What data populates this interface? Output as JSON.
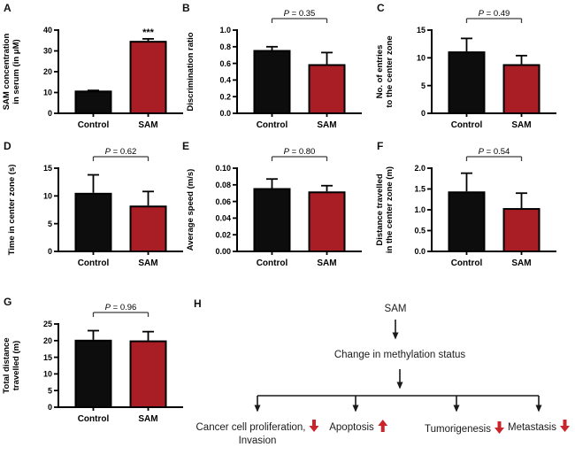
{
  "figure": {
    "background": "#ffffff",
    "categories": [
      "Control",
      "SAM"
    ],
    "bar_colors": [
      "#0d0d0d",
      "#a81e24"
    ],
    "axis_color": "#000000",
    "bracket_color": "#3d3d3d"
  },
  "chart_data": [
    {
      "type": "bar",
      "panel": "A",
      "categories": [
        "Control",
        "SAM"
      ],
      "values": [
        10.5,
        34.4
      ],
      "errors": [
        0.5,
        1.4
      ],
      "ylabel": "SAM concentration in serum (in μM)",
      "ylabel_lines": [
        "SAM concentration",
        "in serum (in μM)"
      ],
      "ylim": [
        0,
        40
      ],
      "yticks": [
        0,
        10,
        20,
        30,
        40
      ],
      "ytick_labels": [
        "0",
        "10",
        "20",
        "30",
        "40"
      ],
      "annotation": "***",
      "p_label": null
    },
    {
      "type": "bar",
      "panel": "B",
      "categories": [
        "Control",
        "SAM"
      ],
      "values": [
        0.75,
        0.58
      ],
      "errors": [
        0.05,
        0.15
      ],
      "ylabel": "Discrimination ratio",
      "ylabel_lines": [
        "Discrimination ratio"
      ],
      "ylim": [
        0,
        1.0
      ],
      "yticks": [
        0,
        0.2,
        0.4,
        0.6,
        0.8,
        1.0
      ],
      "ytick_labels": [
        "0.0",
        "0.2",
        "0.4",
        "0.6",
        "0.8",
        "1.0"
      ],
      "annotation": null,
      "p_label": {
        "italic": "P",
        "rest": " = 0.35"
      }
    },
    {
      "type": "bar",
      "panel": "C",
      "categories": [
        "Control",
        "SAM"
      ],
      "values": [
        11.0,
        8.7
      ],
      "errors": [
        2.5,
        1.7
      ],
      "ylabel": "No. of entries to the center zone",
      "ylabel_lines": [
        "No. of entries",
        "to the center zone"
      ],
      "ylim": [
        0,
        15
      ],
      "yticks": [
        0,
        5,
        10,
        15
      ],
      "ytick_labels": [
        "0",
        "5",
        "10",
        "15"
      ],
      "annotation": null,
      "p_label": {
        "italic": "P",
        "rest": " = 0.49"
      }
    },
    {
      "type": "bar",
      "panel": "D",
      "categories": [
        "Control",
        "SAM"
      ],
      "values": [
        10.4,
        8.1
      ],
      "errors": [
        3.4,
        2.7
      ],
      "ylabel": "Time in center zone (s)",
      "ylabel_lines": [
        "Time in center zone (s)"
      ],
      "ylim": [
        0,
        15
      ],
      "yticks": [
        0,
        5,
        10,
        15
      ],
      "ytick_labels": [
        "0",
        "5",
        "10",
        "15"
      ],
      "annotation": null,
      "p_label": {
        "italic": "P",
        "rest": " = 0.62"
      }
    },
    {
      "type": "bar",
      "panel": "E",
      "categories": [
        "Control",
        "SAM"
      ],
      "values": [
        0.075,
        0.071
      ],
      "errors": [
        0.012,
        0.008
      ],
      "ylabel": "Average speed (m/s)",
      "ylabel_lines": [
        "Average speed (m/s)"
      ],
      "ylim": [
        0,
        0.1
      ],
      "yticks": [
        0,
        0.02,
        0.04,
        0.06,
        0.08,
        0.1
      ],
      "ytick_labels": [
        "0.00",
        "0.02",
        "0.04",
        "0.06",
        "0.08",
        "0.10"
      ],
      "annotation": null,
      "p_label": {
        "italic": "P",
        "rest": " = 0.80"
      }
    },
    {
      "type": "bar",
      "panel": "F",
      "categories": [
        "Control",
        "SAM"
      ],
      "values": [
        1.42,
        1.02
      ],
      "errors": [
        0.46,
        0.38
      ],
      "ylabel": "Distance travelled in the center zone (m)",
      "ylabel_lines": [
        "Distance travelled",
        "in the center zone (m)"
      ],
      "ylim": [
        0,
        2.0
      ],
      "yticks": [
        0,
        0.5,
        1.0,
        1.5,
        2.0
      ],
      "ytick_labels": [
        "0.0",
        "0.5",
        "1.0",
        "1.5",
        "2.0"
      ],
      "annotation": null,
      "p_label": {
        "italic": "P",
        "rest": " = 0.54"
      }
    },
    {
      "type": "bar",
      "panel": "G",
      "categories": [
        "Control",
        "SAM"
      ],
      "values": [
        20.0,
        19.8
      ],
      "errors": [
        3.0,
        2.9
      ],
      "ylabel": "Total distance travelled (m)",
      "ylabel_lines": [
        "Total distance",
        "travelled (m)"
      ],
      "ylim": [
        0,
        25
      ],
      "yticks": [
        0,
        5,
        10,
        15,
        20,
        25
      ],
      "ytick_labels": [
        "0",
        "5",
        "10",
        "15",
        "20",
        "25"
      ],
      "annotation": null,
      "p_label": {
        "italic": "P",
        "rest": " = 0.96"
      }
    }
  ],
  "diagram": {
    "panel": "H",
    "root": "SAM",
    "middle": "Change in methylation status",
    "outcomes": [
      {
        "line1": "Cancer cell proliferation,",
        "line2": "Invasion",
        "direction": "down"
      },
      {
        "line1": "Apoptosis",
        "direction": "up"
      },
      {
        "line1": "Tumorigenesis",
        "direction": "down"
      },
      {
        "line1": "Metastasis",
        "direction": "down"
      }
    ],
    "arrow_color": "#c9252b",
    "line_color": "#1a1a1a"
  }
}
